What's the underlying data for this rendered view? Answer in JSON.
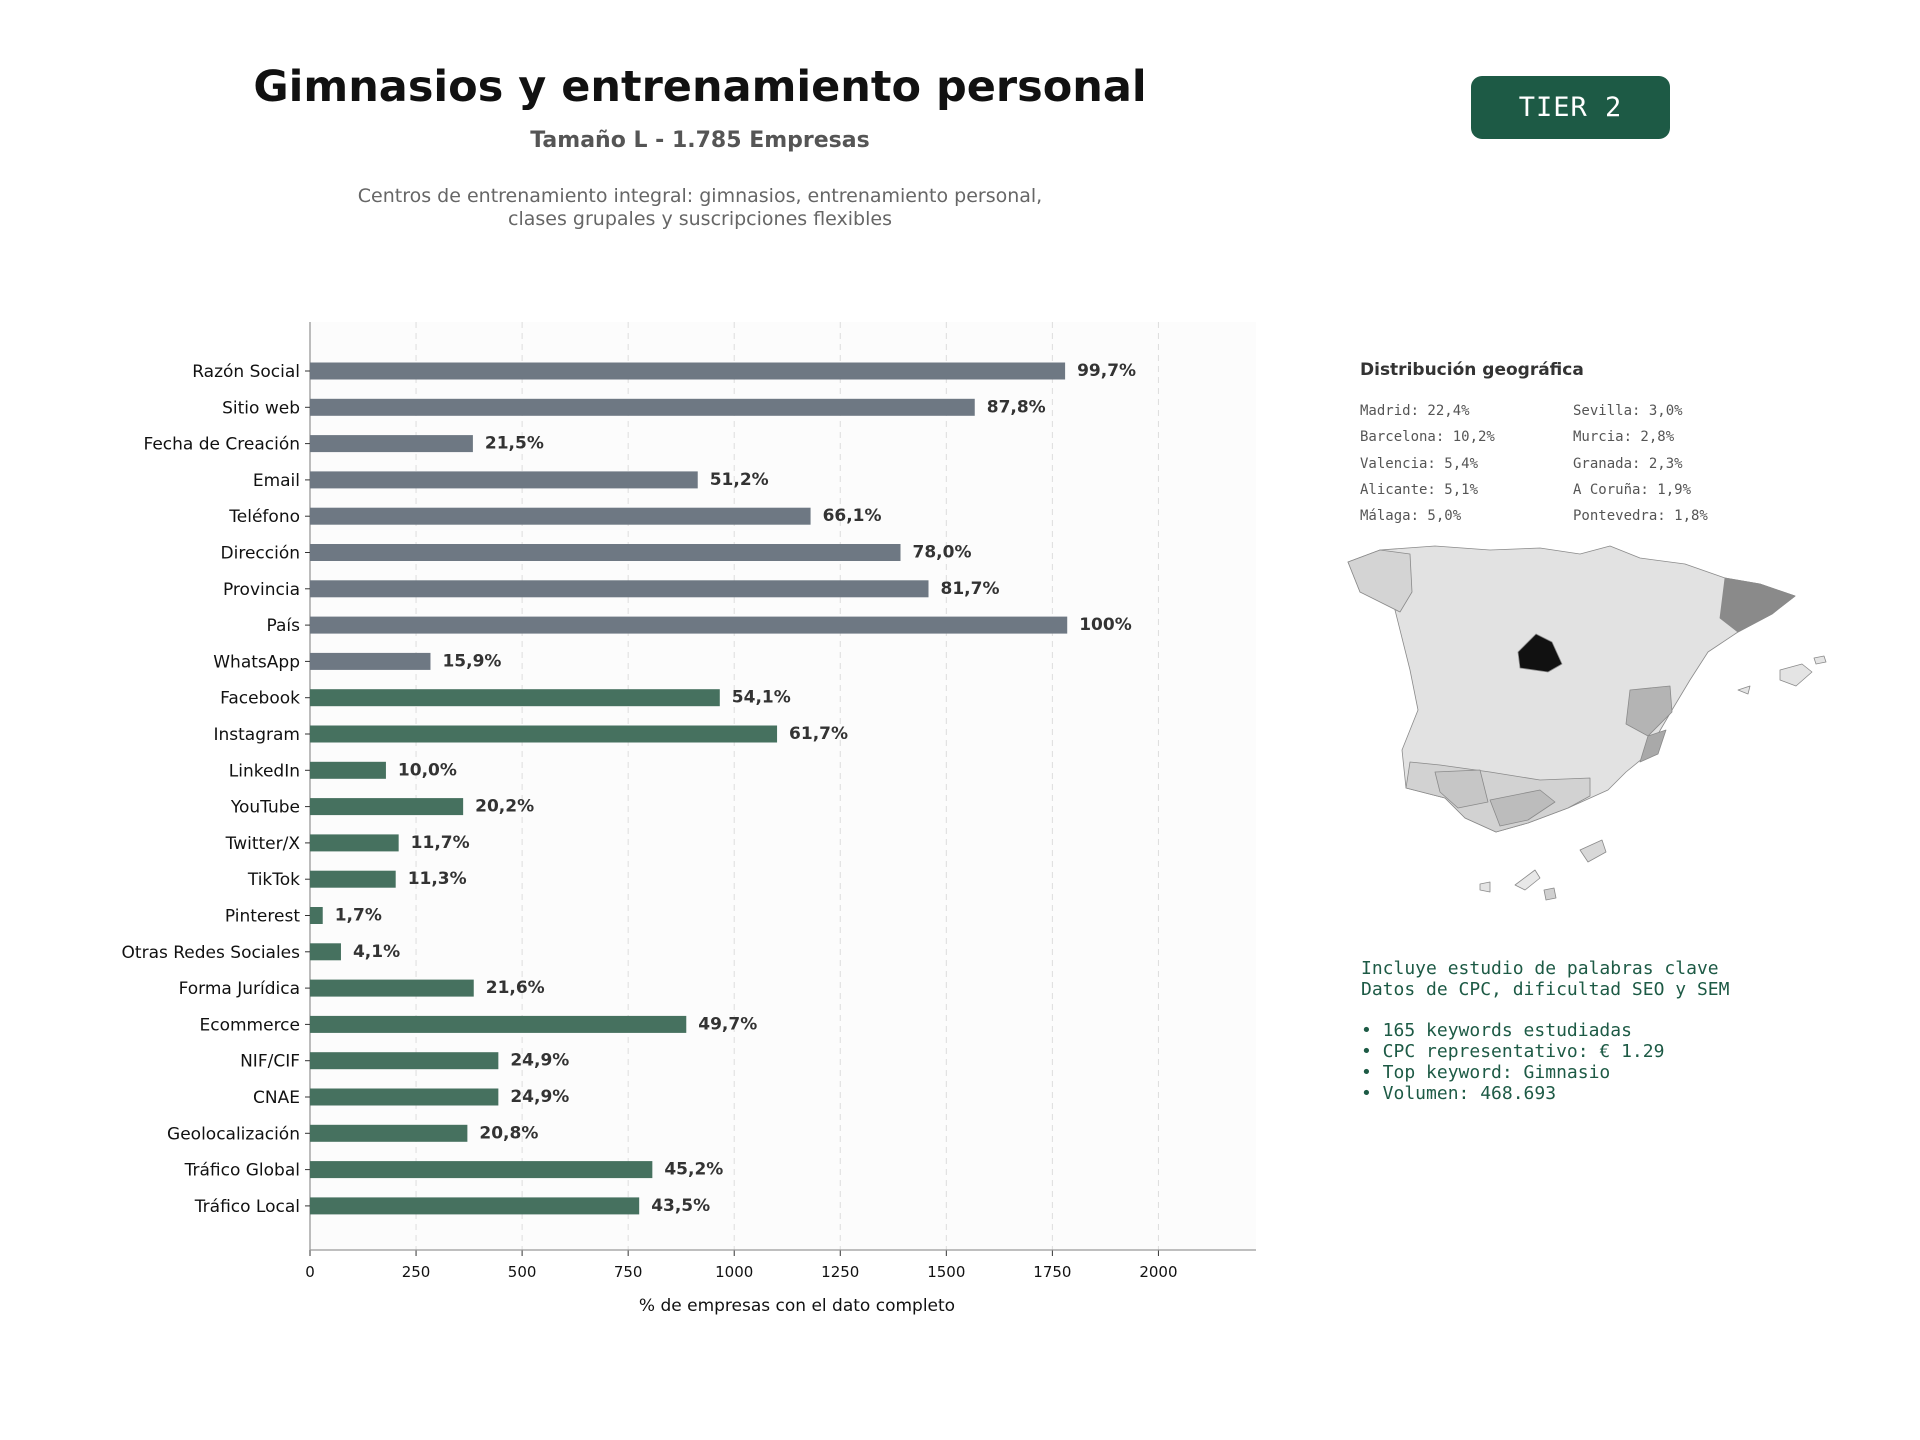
{
  "header": {
    "title": "Gimnasios y entrenamiento personal",
    "subtitle": "Tamaño L - 1.785 Empresas",
    "description_line1": "Centros de entrenamiento integral: gimnasios, entrenamiento personal,",
    "description_line2": "clases grupales y suscripciones flexibles",
    "tier": "TIER 2"
  },
  "chart_data": {
    "type": "bar",
    "orientation": "horizontal",
    "xlabel": "% de empresas con el dato completo",
    "xlim": [
      0,
      2230
    ],
    "xticks": [
      0,
      250,
      500,
      750,
      1000,
      1250,
      1500,
      1750,
      2000
    ],
    "grid": "vertical-dashed",
    "colors": {
      "contact": "#6e7883",
      "digital": "#46715f"
    },
    "categories": [
      "Razón Social",
      "Sitio web",
      "Fecha de Creación",
      "Email",
      "Teléfono",
      "Dirección",
      "Provincia",
      "País",
      "WhatsApp",
      "Facebook",
      "Instagram",
      "LinkedIn",
      "YouTube",
      "Twitter/X",
      "TikTok",
      "Pinterest",
      "Otras Redes Sociales",
      "Forma Jurídica",
      "Ecommerce",
      "NIF/CIF",
      "CNAE",
      "Geolocalización",
      "Tráfico Global",
      "Tráfico Local"
    ],
    "values": [
      1780,
      1567,
      384,
      914,
      1180,
      1392,
      1458,
      1785,
      284,
      966,
      1101,
      179,
      361,
      209,
      202,
      30,
      73,
      386,
      887,
      444,
      444,
      371,
      807,
      776
    ],
    "labels": [
      "99,7%",
      "87,8%",
      "21,5%",
      "51,2%",
      "66,1%",
      "78,0%",
      "81,7%",
      "100%",
      "15,9%",
      "54,1%",
      "61,7%",
      "10,0%",
      "20,2%",
      "11,7%",
      "11,3%",
      "1,7%",
      "4,1%",
      "21,6%",
      "49,7%",
      "24,9%",
      "24,9%",
      "20,8%",
      "45,2%",
      "43,5%"
    ],
    "groups": [
      "contact",
      "contact",
      "contact",
      "contact",
      "contact",
      "contact",
      "contact",
      "contact",
      "contact",
      "digital",
      "digital",
      "digital",
      "digital",
      "digital",
      "digital",
      "digital",
      "digital",
      "digital",
      "digital",
      "digital",
      "digital",
      "digital",
      "digital",
      "digital"
    ]
  },
  "geo": {
    "title": "Distribución geográfica",
    "left": [
      "Madrid: 22,4%",
      "Barcelona: 10,2%",
      "Valencia: 5,4%",
      "Alicante: 5,1%",
      "Málaga: 5,0%"
    ],
    "right": [
      "Sevilla: 3,0%",
      "Murcia: 2,8%",
      "Granada: 2,3%",
      "A Coruña: 1,9%",
      "Pontevedra: 1,8%"
    ]
  },
  "keywords": {
    "line1": "Incluye estudio de palabras clave",
    "line2": "Datos de CPC, dificultad SEO y SEM",
    "bullets": [
      "• 165 keywords estudiadas",
      "• CPC representativo: € 1.29",
      "• Top keyword: Gimnasio",
      "• Volumen: 468.693"
    ]
  }
}
